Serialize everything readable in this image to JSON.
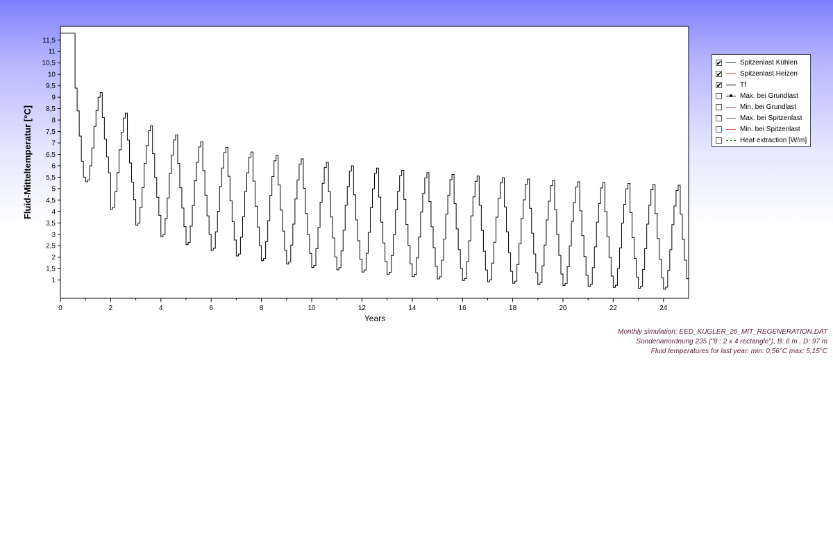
{
  "chart_data": {
    "type": "line",
    "xlabel": "Years",
    "ylabel": "Fluid-Mitteltemperatur [°C]",
    "xlim": [
      0,
      25
    ],
    "ylim": [
      0.2,
      12.1
    ],
    "x_ticks": [
      0,
      2,
      4,
      6,
      8,
      10,
      12,
      14,
      16,
      18,
      20,
      22,
      24
    ],
    "y_ticks": [
      "1",
      "1,5",
      "2",
      "2,5",
      "3",
      "3,5",
      "4",
      "4,5",
      "5",
      "5,5",
      "6",
      "6,5",
      "7",
      "7,5",
      "8",
      "8,5",
      "9",
      "9,5",
      "10",
      "10,5",
      "11",
      "11,5"
    ],
    "grid": false,
    "legend_position": "right",
    "series": [
      {
        "name": "Tf",
        "color": "#000000",
        "step": true,
        "first_year_months": [
          11.8,
          11.8,
          11.8,
          11.8,
          11.8,
          11.8,
          11.8,
          9.4,
          8.4,
          7.3,
          6.2,
          5.5
        ],
        "yearly_min": [
          5.3,
          4.1,
          3.4,
          2.9,
          2.55,
          2.3,
          2.05,
          1.85,
          1.7,
          1.55,
          1.45,
          1.35,
          1.25,
          1.15,
          1.05,
          0.98,
          0.92,
          0.86,
          0.8,
          0.76,
          0.72,
          0.68,
          0.64,
          0.6,
          0.56
        ],
        "yearly_max": [
          11.8,
          9.2,
          8.3,
          7.75,
          7.35,
          7.05,
          6.8,
          6.6,
          6.45,
          6.3,
          6.15,
          6.0,
          5.9,
          5.8,
          5.7,
          5.62,
          5.55,
          5.48,
          5.42,
          5.36,
          5.3,
          5.26,
          5.22,
          5.18,
          5.15
        ]
      }
    ]
  },
  "legend": {
    "items": [
      {
        "label": "Spitzenlast Kühlen",
        "checked": true,
        "color": "#2a3f9e",
        "style": "solid"
      },
      {
        "label": "Spitzenlast Heizen",
        "checked": true,
        "color": "#d42020",
        "style": "solid"
      },
      {
        "label": "Tf",
        "checked": true,
        "color": "#000000",
        "style": "solid"
      },
      {
        "label": "Max. bei Grundlast",
        "checked": false,
        "color": "#000000",
        "style": "dot"
      },
      {
        "label": "Min. bei Grundlast",
        "checked": false,
        "color": "#9a4a7a",
        "style": "solid"
      },
      {
        "label": "Max. bei Spitzenlast",
        "checked": false,
        "color": "#6a7ab0",
        "style": "solid"
      },
      {
        "label": "Min. bei Spitzenlast",
        "checked": false,
        "color": "#e05050",
        "style": "solid"
      },
      {
        "label": "Heat extraction [W/m]",
        "checked": false,
        "color": "#208020",
        "style": "dashed"
      }
    ]
  },
  "caption": {
    "line1": "Monthly simulation: EED_KUGLER_26_MIT_REGENERATION.DAT",
    "line2": "Sondenanordnung 235 (\"8 : 2 x 4 rectangle\"), B: 6 m , D: 97 m",
    "line3": "Fluid temperatures for last year: min: 0,56°C max: 5,15°C"
  }
}
